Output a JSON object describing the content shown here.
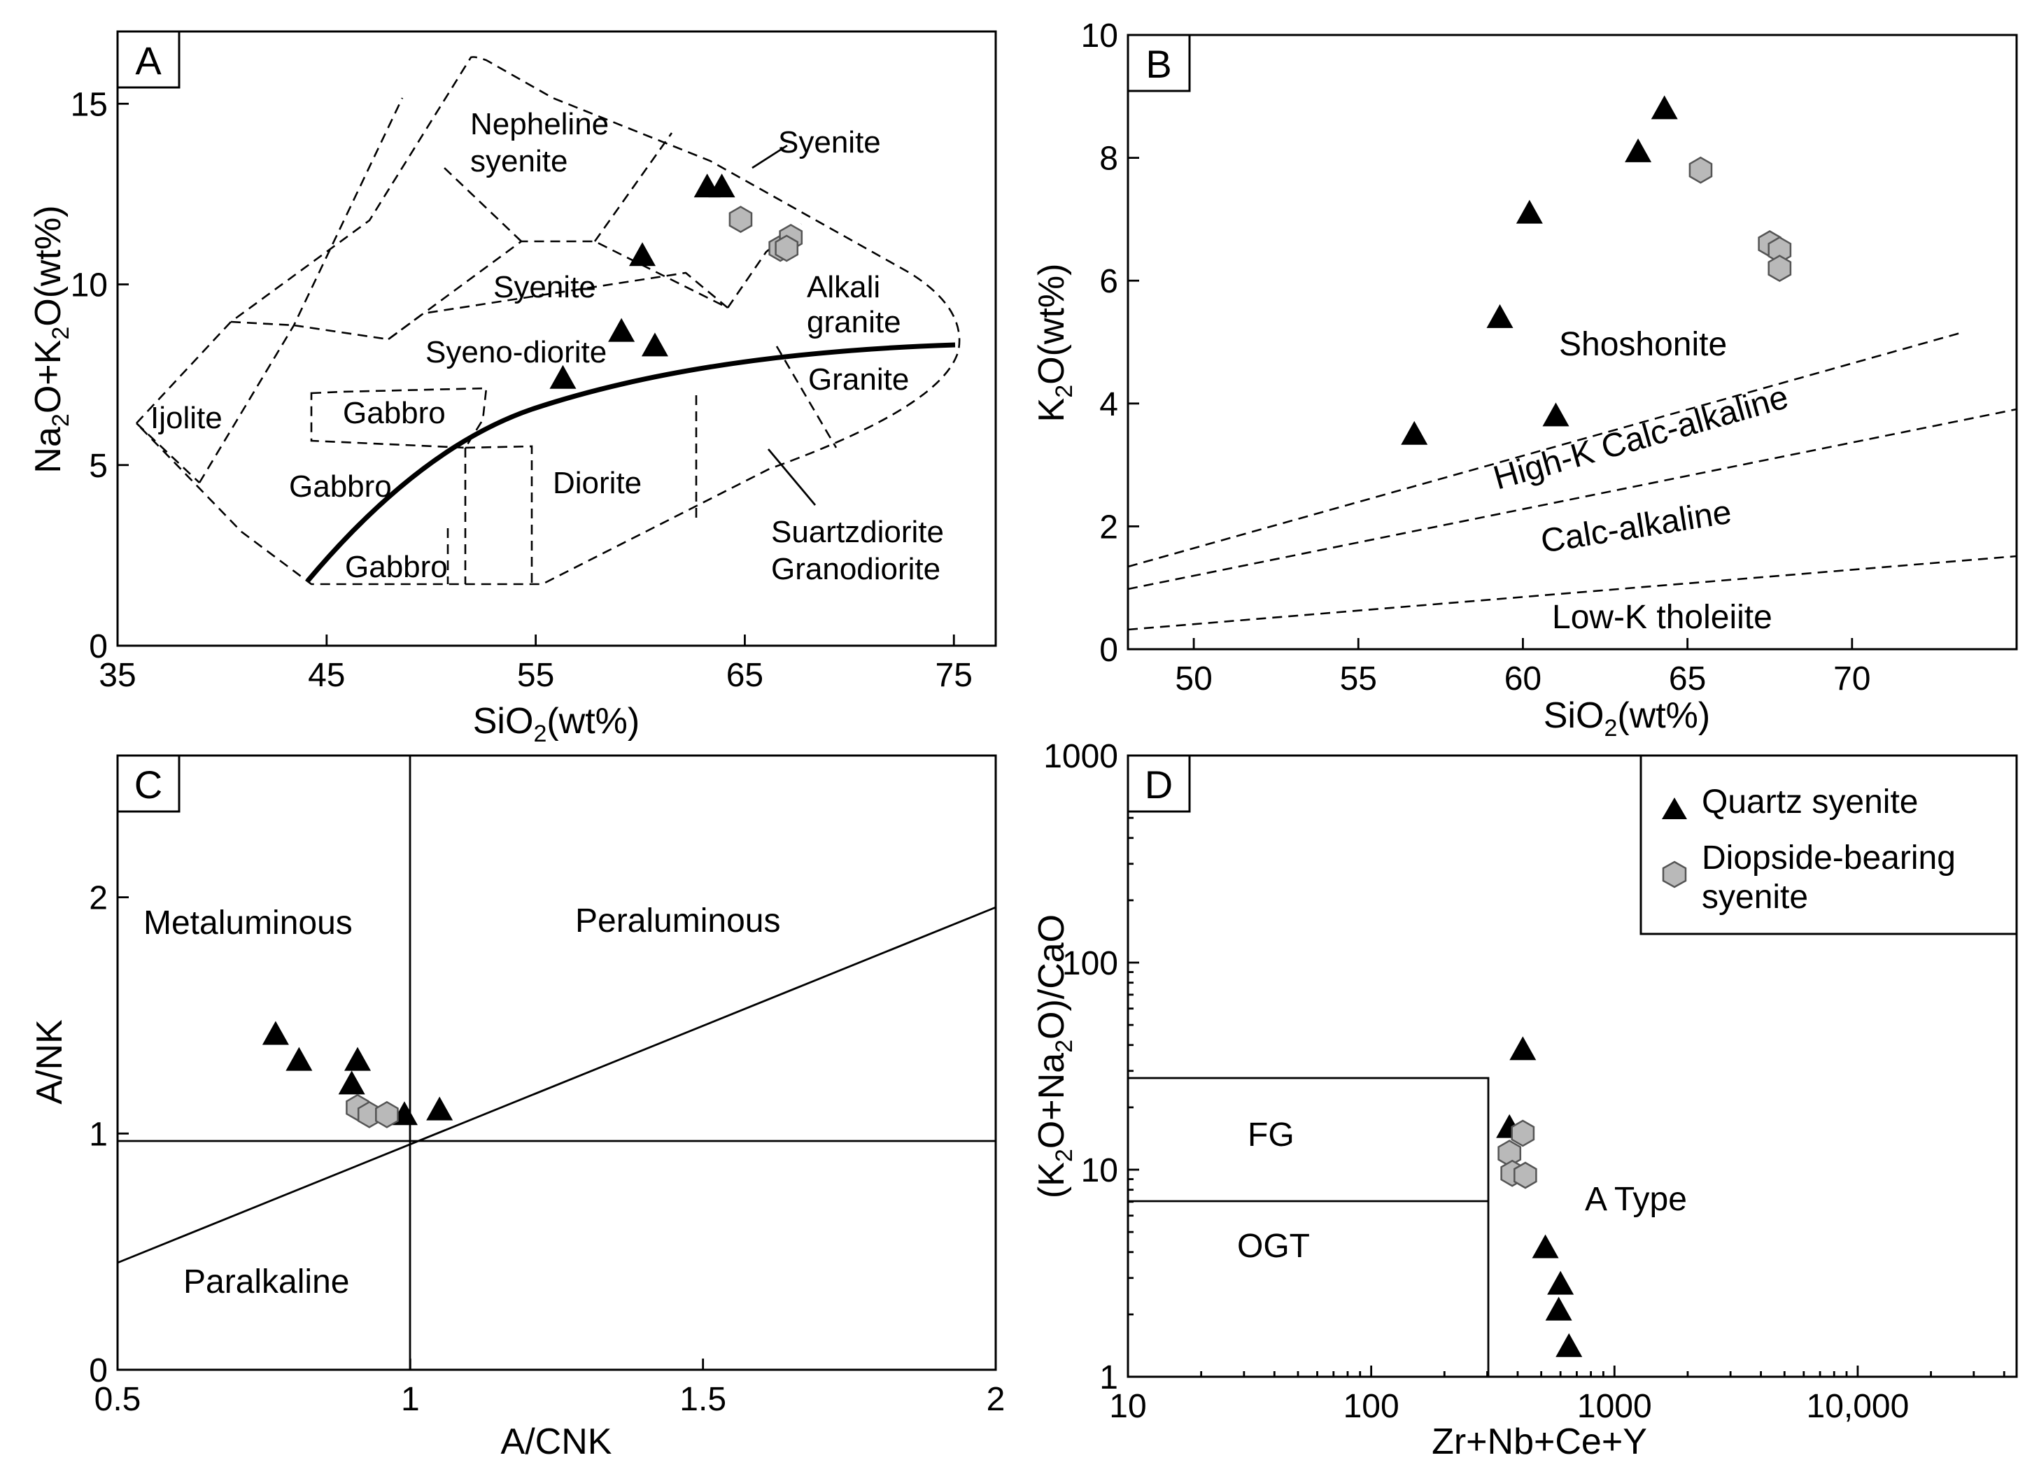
{
  "legend": {
    "quartz_syenite": "Quartz syenite",
    "diopside_line1": "Diopside-bearing",
    "diopside_line2": "syenite",
    "colors": {
      "triangle": "#000000",
      "hexagon": "#b9b9b9"
    }
  },
  "chart_data": [
    {
      "panel": "A",
      "type": "scatter",
      "xlabel_main": "SiO",
      "xlabel_sub": "2",
      "xlabel_tail": "(wt%)",
      "ylabel": "Na2O+K2O(wt%)",
      "xlim": [
        35,
        77
      ],
      "ylim": [
        0,
        17
      ],
      "xticks": [
        "35",
        "45",
        "55",
        "65",
        "75"
      ],
      "yticks": [
        "0",
        "5",
        "10",
        "15"
      ],
      "fields": {
        "ijolite": "Ijolite",
        "nepheline1": "Nepheline",
        "nepheline2": "syenite",
        "syenite_top": "Syenite",
        "syenite": "Syenite",
        "syenodiorite": "Syeno-diorite",
        "alkali1": "Alkali",
        "alkali2": "granite",
        "granite": "Granite",
        "gabbro_a": "Gabbro",
        "gabbro_b": "Gabbro",
        "gabbro_c": "Gabbro",
        "diorite": "Diorite",
        "suartz": "Suartzdiorite",
        "granodiorite": "Granodiorite"
      },
      "series": [
        {
          "name": "Quartz syenite",
          "marker": "triangle",
          "points": [
            [
              63.2,
              12.7
            ],
            [
              63.9,
              12.7
            ],
            [
              60.1,
              10.8
            ],
            [
              59.1,
              8.7
            ],
            [
              60.7,
              8.3
            ],
            [
              56.3,
              7.4
            ]
          ]
        },
        {
          "name": "Diopside-bearing syenite",
          "marker": "hexagon",
          "points": [
            [
              64.8,
              11.8
            ],
            [
              66.7,
              11.0
            ],
            [
              67.2,
              11.3
            ],
            [
              67.0,
              11.0
            ]
          ]
        }
      ]
    },
    {
      "panel": "B",
      "type": "scatter",
      "xlabel_main": "SiO",
      "xlabel_sub": "2",
      "xlabel_tail": "(wt%)",
      "ylabel": "K2O(wt%)",
      "xlim": [
        48,
        75
      ],
      "ylim": [
        0,
        10
      ],
      "xticks": [
        "50",
        "55",
        "60",
        "65",
        "70"
      ],
      "yticks": [
        "0",
        "2",
        "4",
        "6",
        "8",
        "10"
      ],
      "fields": {
        "shoshonite": "Shoshonite",
        "highk": "High-K Calc-alkaline",
        "calcalk": "Calc-alkaline",
        "lowk": "Low-K tholeiite"
      },
      "series": [
        {
          "name": "Quartz syenite",
          "marker": "triangle",
          "points": [
            [
              64.3,
              8.8
            ],
            [
              63.5,
              8.1
            ],
            [
              60.2,
              7.1
            ],
            [
              59.3,
              5.4
            ],
            [
              61.0,
              3.8
            ],
            [
              56.7,
              3.5
            ]
          ]
        },
        {
          "name": "Diopside-bearing syenite",
          "marker": "hexagon",
          "points": [
            [
              65.4,
              7.8
            ],
            [
              67.5,
              6.6
            ],
            [
              67.8,
              6.5
            ],
            [
              67.8,
              6.2
            ]
          ]
        }
      ]
    },
    {
      "panel": "C",
      "type": "scatter",
      "xlabel": "A/CNK",
      "ylabel": "A/NK",
      "xlim": [
        0.5,
        2.0
      ],
      "ylim": [
        0,
        2.6
      ],
      "xticks": [
        "0.5",
        "1",
        "1.5",
        "2"
      ],
      "yticks": [
        "0",
        "1",
        "2"
      ],
      "fields": {
        "metaluminous": "Metaluminous",
        "peraluminous": "Peraluminous",
        "peralkaline": "Paralkaline"
      },
      "series": [
        {
          "name": "Quartz syenite",
          "marker": "triangle",
          "points": [
            [
              0.77,
              1.42
            ],
            [
              0.81,
              1.31
            ],
            [
              0.91,
              1.31
            ],
            [
              0.9,
              1.21
            ],
            [
              0.99,
              1.08
            ],
            [
              1.05,
              1.1
            ]
          ]
        },
        {
          "name": "Diopside-bearing syenite",
          "marker": "hexagon",
          "points": [
            [
              0.91,
              1.11
            ],
            [
              0.93,
              1.08
            ],
            [
              0.96,
              1.08
            ]
          ]
        }
      ]
    },
    {
      "panel": "D",
      "type": "scatter",
      "xlabel": "Zr+Nb+Ce+Y",
      "ylabel": "(K2O+Na2O)/CaO",
      "xscale": "log",
      "yscale": "log",
      "xlim": [
        10,
        45000
      ],
      "ylim": [
        1,
        1000
      ],
      "xticks": [
        "10",
        "100",
        "1000",
        "10,000"
      ],
      "yticks": [
        "1",
        "10",
        "100",
        "1000"
      ],
      "fields": {
        "fg": "FG",
        "ogt": "OGT",
        "atype": "A Type"
      },
      "series": [
        {
          "name": "Quartz syenite",
          "marker": "triangle",
          "points": [
            [
              420,
              38
            ],
            [
              370,
              16
            ],
            [
              520,
              4.2
            ],
            [
              600,
              2.8
            ],
            [
              590,
              2.1
            ],
            [
              650,
              1.4
            ]
          ]
        },
        {
          "name": "Diopside-bearing syenite",
          "marker": "hexagon",
          "points": [
            [
              420,
              15
            ],
            [
              370,
              12
            ],
            [
              380,
              9.6
            ],
            [
              430,
              9.4
            ]
          ]
        }
      ]
    }
  ]
}
